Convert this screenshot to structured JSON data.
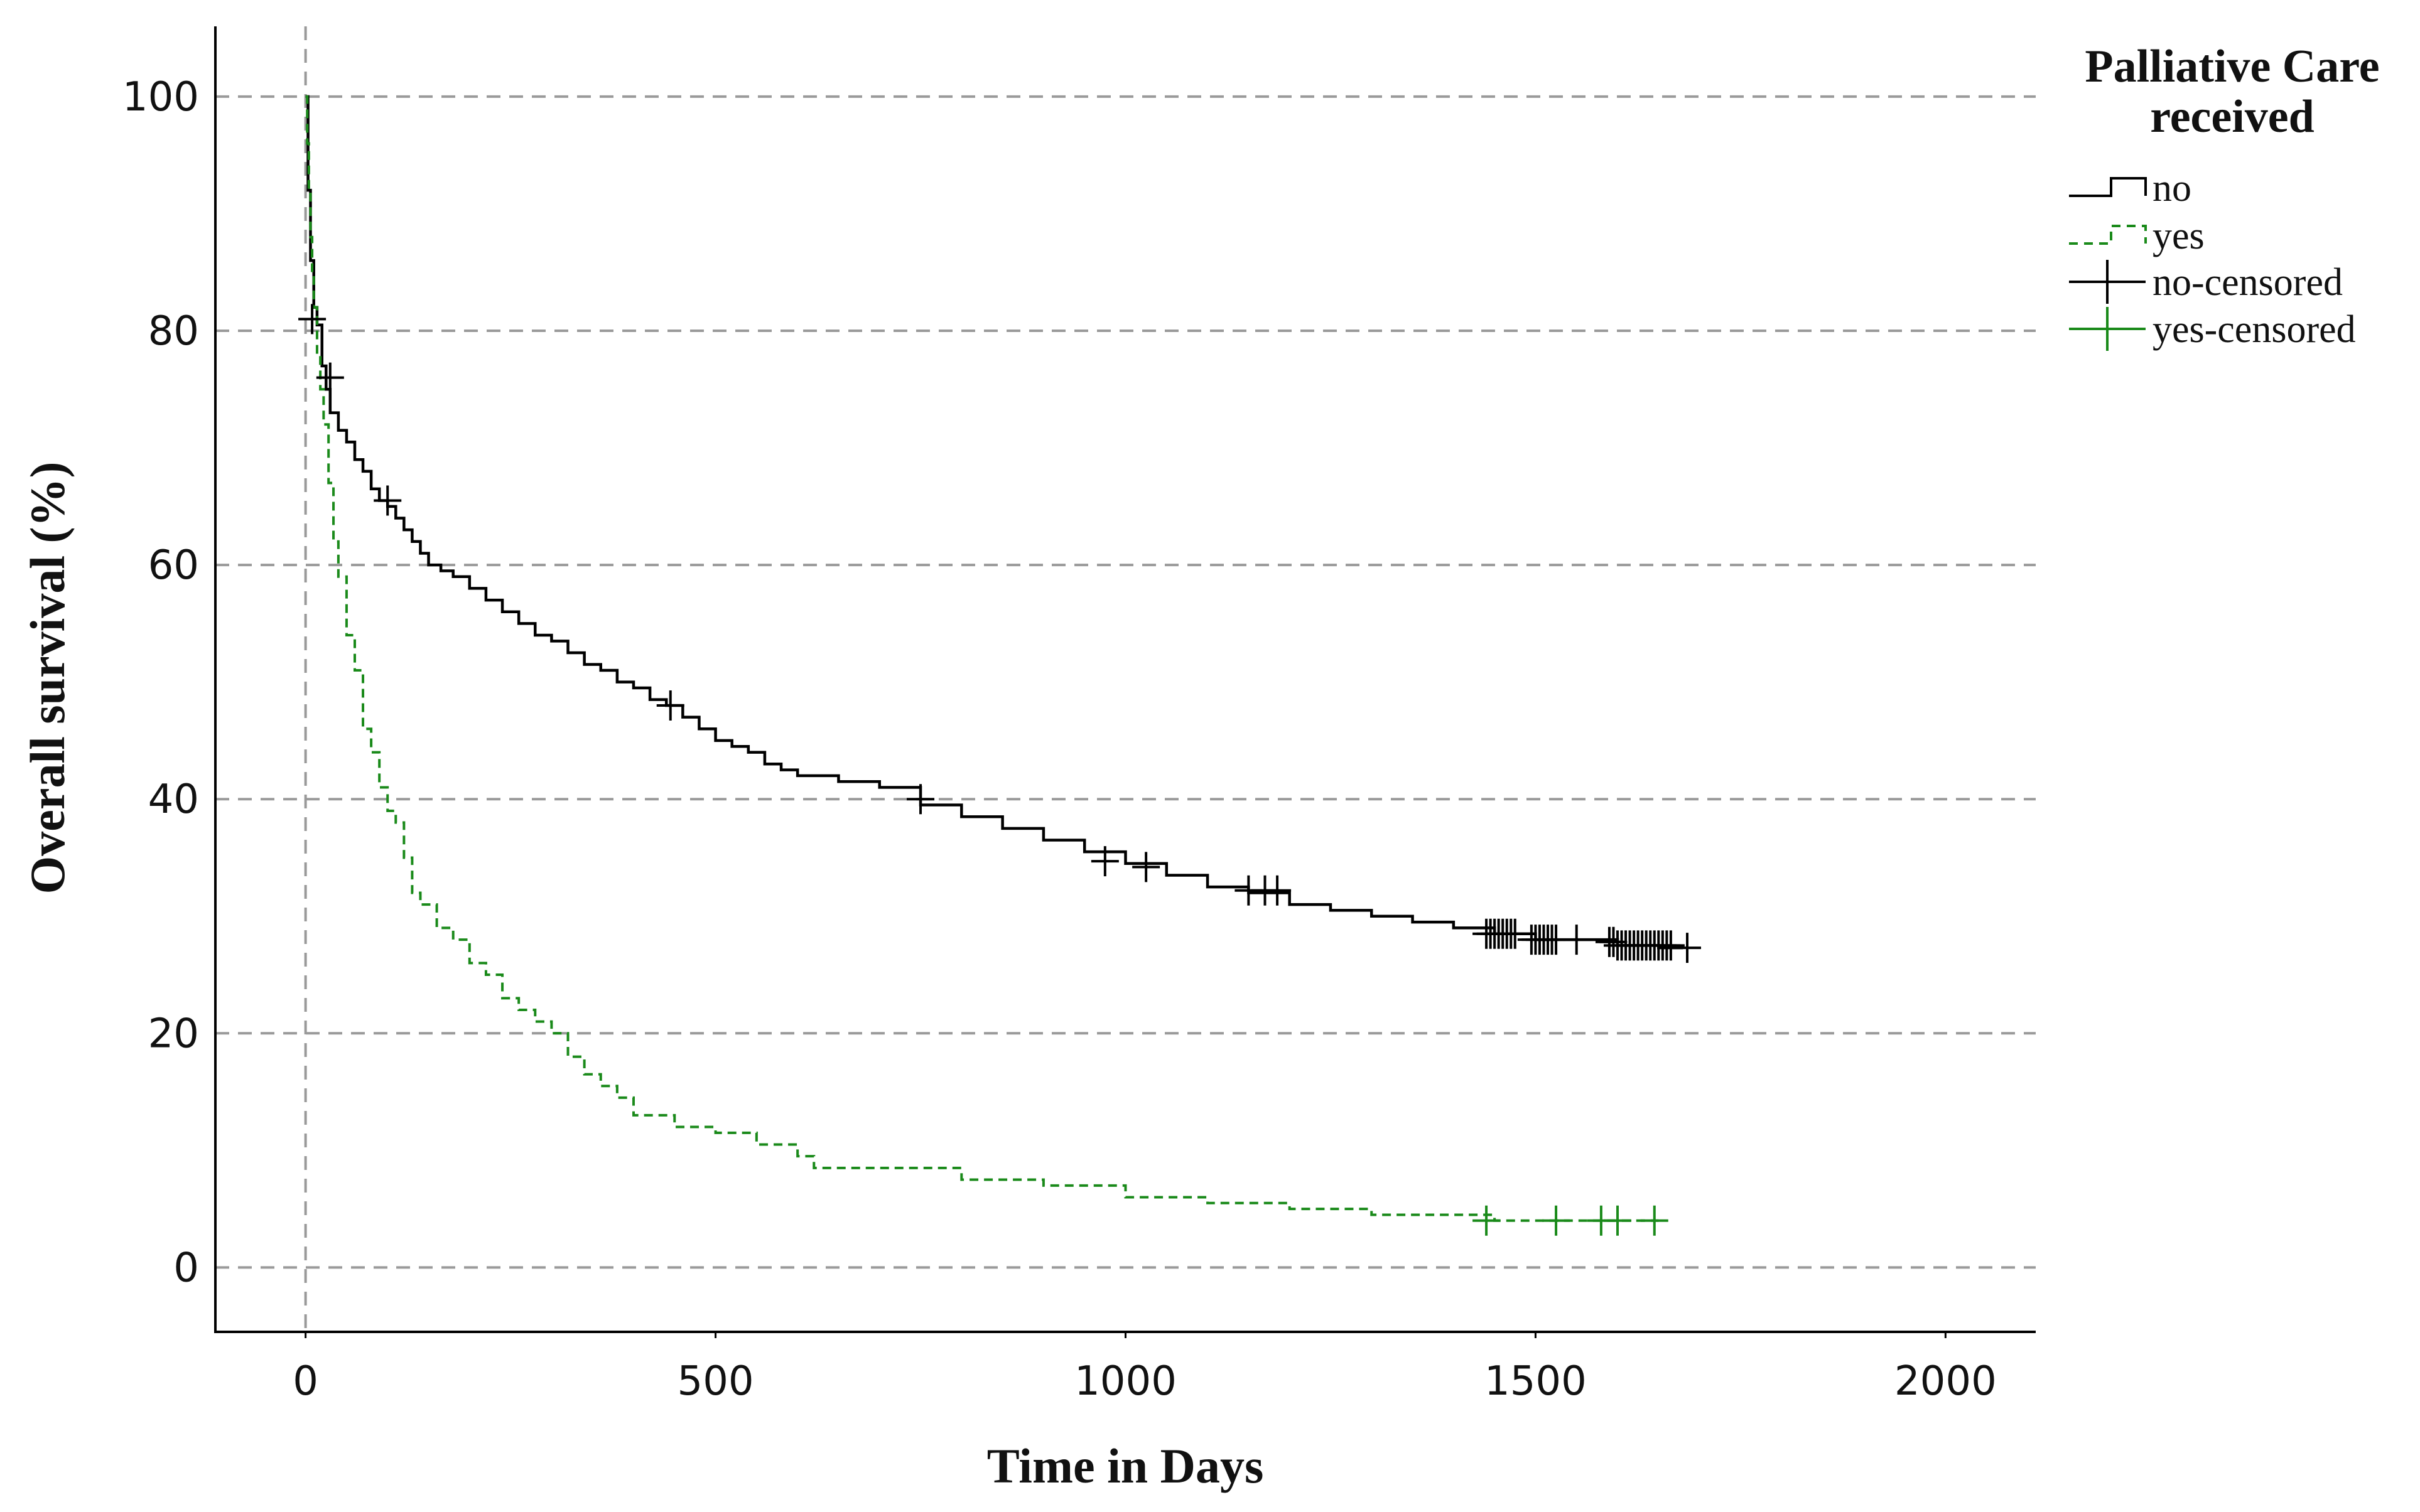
{
  "chart_data": {
    "type": "line",
    "subtype": "kaplan-meier step",
    "title": "",
    "xlabel": "Time in Days",
    "ylabel": "Overall survival (%)",
    "xlim": [
      -110,
      2110
    ],
    "ylim": [
      -5.5,
      106
    ],
    "x_ticks": [
      0,
      500,
      1000,
      1500,
      2000
    ],
    "y_ticks": [
      0,
      20,
      40,
      60,
      80,
      100
    ],
    "x_tick_labels": [
      "0",
      "500",
      "1000",
      "1500",
      "2000"
    ],
    "y_tick_labels": [
      "0",
      "20",
      "40",
      "60",
      "80",
      "100"
    ],
    "grid": "horizontal dashed at y ticks; vertical dashed at x = 0",
    "legend": {
      "title": "Palliative Care received",
      "title_lines": [
        "Palliative Care",
        "received"
      ],
      "placement": "right",
      "entries": [
        "no",
        "yes",
        "no-censored",
        "yes-censored"
      ]
    },
    "colors": {
      "no": "#000000",
      "yes": "#1a8a1a",
      "grid": "#9a9a9a"
    },
    "series": [
      {
        "name": "no",
        "line_style": "solid",
        "x": [
          0,
          3,
          6,
          10,
          14,
          20,
          25,
          30,
          40,
          50,
          60,
          70,
          80,
          90,
          100,
          110,
          120,
          130,
          140,
          150,
          165,
          180,
          200,
          220,
          240,
          260,
          280,
          300,
          320,
          340,
          360,
          380,
          400,
          420,
          440,
          460,
          480,
          500,
          520,
          540,
          560,
          580,
          600,
          650,
          700,
          750,
          800,
          850,
          900,
          950,
          1000,
          1050,
          1100,
          1150,
          1200,
          1250,
          1300,
          1350,
          1400,
          1450,
          1500,
          1550,
          1600,
          1650,
          1680
        ],
        "y": [
          100,
          92,
          86,
          82,
          80.5,
          77,
          75,
          73,
          71.5,
          70.5,
          69,
          68,
          66.5,
          65.5,
          65,
          64,
          63,
          62,
          61,
          60,
          59.5,
          59,
          58,
          57,
          56,
          55,
          54,
          53.5,
          52.5,
          51.5,
          51,
          50,
          49.5,
          48.5,
          48,
          47,
          46,
          45,
          44.5,
          44,
          43,
          42.5,
          42,
          41.5,
          41,
          39.5,
          38.5,
          37.5,
          36.5,
          35.5,
          34.5,
          33.5,
          32.5,
          32,
          31,
          30.5,
          30,
          29.5,
          29,
          28.5,
          28,
          28,
          27.5,
          27.3,
          27.3
        ]
      },
      {
        "name": "yes",
        "line_style": "dashed",
        "x": [
          0,
          2,
          4,
          6,
          8,
          10,
          14,
          18,
          22,
          28,
          34,
          40,
          50,
          60,
          70,
          80,
          90,
          100,
          110,
          120,
          130,
          140,
          160,
          180,
          200,
          220,
          240,
          260,
          280,
          300,
          320,
          340,
          360,
          380,
          400,
          450,
          500,
          550,
          600,
          620,
          700,
          800,
          900,
          1000,
          1100,
          1200,
          1300,
          1400,
          1450,
          1650
        ],
        "y": [
          100,
          96,
          92,
          88,
          85,
          82,
          78,
          75,
          72,
          67,
          62,
          59,
          54,
          51,
          46,
          44,
          41,
          39,
          38,
          35,
          32,
          31,
          29,
          28,
          26,
          25,
          23,
          22,
          21,
          20,
          18,
          16.5,
          15.5,
          14.5,
          13,
          12,
          11.5,
          10.5,
          9.5,
          8.5,
          8.5,
          7.5,
          7,
          6,
          5.5,
          5,
          4.5,
          4.5,
          4,
          4
        ]
      }
    ],
    "censored": [
      {
        "name": "no-censored",
        "x": [
          8,
          30,
          100,
          445,
          750,
          975,
          1025,
          1150,
          1170,
          1185,
          1440,
          1445,
          1450,
          1455,
          1460,
          1465,
          1470,
          1475,
          1495,
          1500,
          1505,
          1510,
          1515,
          1520,
          1525,
          1550,
          1590,
          1595,
          1600,
          1605,
          1610,
          1615,
          1620,
          1625,
          1630,
          1635,
          1640,
          1645,
          1650,
          1655,
          1660,
          1665,
          1685
        ],
        "y": [
          81,
          76,
          65.5,
          48,
          40,
          34.7,
          34.2,
          32.2,
          32.2,
          32.2,
          28.5,
          28.5,
          28.5,
          28.5,
          28.5,
          28.5,
          28.5,
          28.5,
          28,
          28,
          28,
          28,
          28,
          28,
          28,
          28,
          27.8,
          27.8,
          27.5,
          27.5,
          27.5,
          27.5,
          27.5,
          27.5,
          27.5,
          27.5,
          27.5,
          27.5,
          27.5,
          27.5,
          27.5,
          27.5,
          27.3
        ]
      },
      {
        "name": "yes-censored",
        "x": [
          1440,
          1525,
          1580,
          1600,
          1645
        ],
        "y": [
          4,
          4,
          4,
          4,
          4
        ]
      }
    ]
  }
}
